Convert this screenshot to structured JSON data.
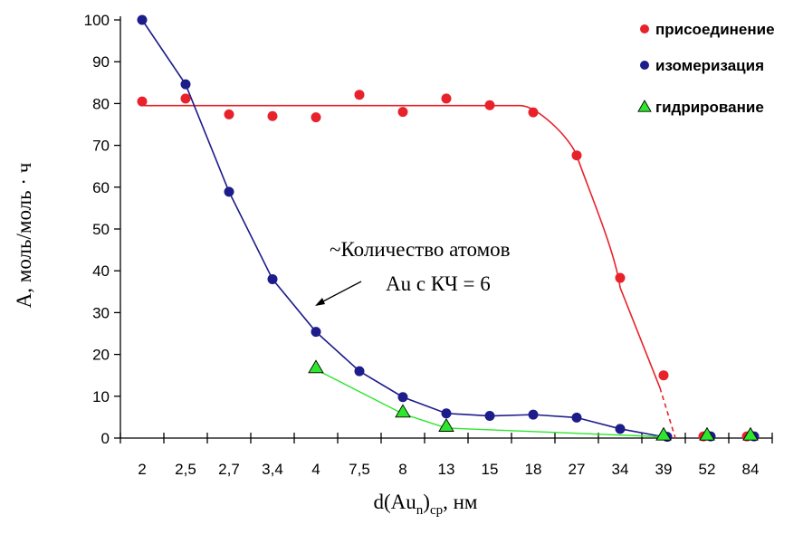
{
  "chart_data": {
    "type": "scatter",
    "categories": [
      "2",
      "2,5",
      "2,7",
      "3,4",
      "4",
      "7,5",
      "8",
      "13",
      "15",
      "18",
      "27",
      "34",
      "39",
      "52",
      "84"
    ],
    "ylim": [
      0,
      100
    ],
    "yticks": [
      "0",
      "10",
      "20",
      "30",
      "40",
      "50",
      "60",
      "70",
      "80",
      "90",
      "100"
    ],
    "ylabel_main": "А, моль/моль · ч",
    "xlabel": {
      "prefix": "d(Au",
      "sub_n": "n",
      "mid": ")",
      "sub_cp": "ср",
      "suffix": ", нм"
    },
    "series": [
      {
        "name": "присоединение",
        "color": "#e8222a",
        "marker": "circle",
        "values": [
          80.5,
          81.2,
          77.4,
          77.0,
          76.7,
          82.1,
          78.0,
          81.2,
          79.6,
          77.9,
          67.6,
          38.3,
          15.0,
          0.4,
          0.4
        ]
      },
      {
        "name": "изомеризация",
        "color": "#1c1c8a",
        "marker": "circle",
        "values": [
          100,
          84.6,
          58.9,
          38.0,
          25.4,
          16.0,
          9.8,
          5.9,
          5.3,
          5.6,
          4.9,
          2.2,
          0.3,
          0.4,
          0.4
        ]
      },
      {
        "name": "гидрирование",
        "color": "#2ee62e",
        "marker": "triangle",
        "values": [
          null,
          null,
          null,
          null,
          16.4,
          null,
          5.8,
          2.4,
          null,
          null,
          null,
          null,
          0.3,
          0.3,
          0.3
        ]
      }
    ],
    "annotation": {
      "line1": "~Количество атомов",
      "line2": "Au  с КЧ = 6"
    }
  }
}
